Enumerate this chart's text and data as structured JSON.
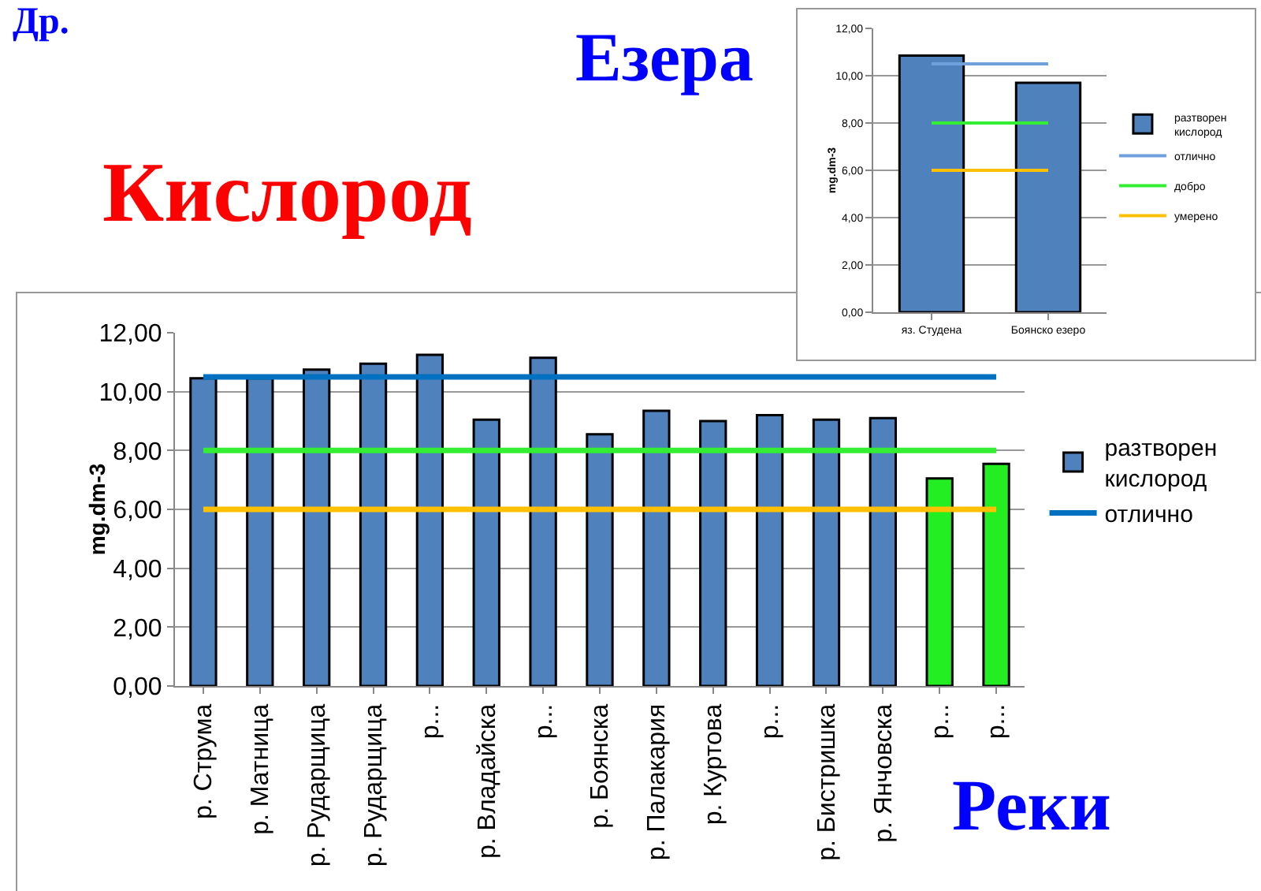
{
  "chart_data": [
    {
      "type": "bar",
      "title": "Кислород",
      "ylabel": "mg.dm-3",
      "annotations": [
        "Реки",
        "Др."
      ],
      "categories": [
        "р. Струма",
        "р. Матница",
        "р. Рударщица",
        "р. Рударщица",
        "р...",
        "р. Владайска",
        "р...",
        "р. Боянска",
        "р. Палакария",
        "р. Куртова",
        "р...",
        "р. Бистришка",
        "р. Янчовска",
        "р...",
        "р..."
      ],
      "series": [
        {
          "name": "разтворен кислород",
          "colors": [
            "#4f81bd",
            "#4f81bd",
            "#4f81bd",
            "#4f81bd",
            "#4f81bd",
            "#4f81bd",
            "#4f81bd",
            "#4f81bd",
            "#4f81bd",
            "#4f81bd",
            "#4f81bd",
            "#4f81bd",
            "#4f81bd",
            "#22ee22",
            "#22ee22"
          ],
          "values": [
            10.45,
            10.45,
            10.75,
            10.95,
            11.25,
            9.05,
            11.15,
            8.55,
            9.35,
            9.0,
            9.2,
            9.05,
            9.1,
            7.05,
            7.55
          ]
        }
      ],
      "ref_lines": [
        {
          "axis": "y",
          "value": 10.5,
          "label": "отлично",
          "color": "#0070c0"
        },
        {
          "axis": "y",
          "value": 8,
          "color": "#33ee33"
        },
        {
          "axis": "y",
          "value": 6,
          "color": "#ffc000"
        }
      ],
      "ylim": [
        0,
        12
      ],
      "yticks": [
        {
          "value": 0,
          "label": "0,00"
        },
        {
          "value": 2,
          "label": "2,00"
        },
        {
          "value": 4,
          "label": "4,00"
        },
        {
          "value": 6,
          "label": "6,00"
        },
        {
          "value": 8,
          "label": "8,00"
        },
        {
          "value": 10,
          "label": "10,00"
        },
        {
          "value": 12,
          "label": "12,00"
        }
      ],
      "grid": "y",
      "legend": "right"
    },
    {
      "type": "bar",
      "title": "Езера",
      "ylabel": "mg.dm-3",
      "categories": [
        "яз. Студена",
        "Боянско езеро"
      ],
      "series": [
        {
          "name": "разтворен кислород",
          "color": "#4f81bd",
          "values": [
            10.85,
            9.7
          ]
        }
      ],
      "ref_lines": [
        {
          "axis": "y",
          "value": 10.5,
          "label": "отлично",
          "color": "#6fa0dc"
        },
        {
          "axis": "y",
          "value": 8,
          "label": "добро",
          "color": "#33ee33"
        },
        {
          "axis": "y",
          "value": 6,
          "label": "умерено",
          "color": "#ffc000"
        }
      ],
      "ylim": [
        0,
        12
      ],
      "yticks": [
        {
          "value": 0,
          "label": "0,00"
        },
        {
          "value": 2,
          "label": "2,00"
        },
        {
          "value": 4,
          "label": "4,00"
        },
        {
          "value": 6,
          "label": "6,00"
        },
        {
          "value": 8,
          "label": "8,00"
        },
        {
          "value": 10,
          "label": "10,00"
        },
        {
          "value": 12,
          "label": "12,00"
        }
      ],
      "grid": "y",
      "legend": "right"
    }
  ]
}
